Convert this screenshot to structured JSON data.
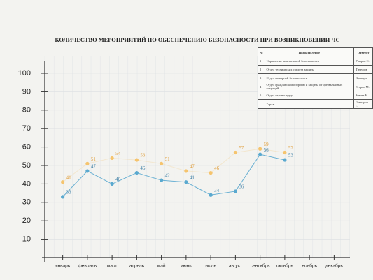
{
  "chart_data": {
    "type": "line",
    "title": "КОЛИЧЕСТВО МЕРОПРИЯТИЙ ПО ОБЕСПЕЧЕНИЮ БЕЗОПАСНОСТИ ПРИ ВОЗНИКНОВЕНИИ ЧС",
    "categories": [
      "январь",
      "февраль",
      "март",
      "апрель",
      "май",
      "июнь",
      "июль",
      "август",
      "сентябрь",
      "октябрь",
      "ноябрь",
      "декабрь"
    ],
    "series": [
      {
        "color": "#f5c46e",
        "values": [
          41,
          51,
          54,
          53,
          51,
          47,
          46,
          57,
          59,
          57,
          null,
          null
        ]
      },
      {
        "color": "#5aa9cf",
        "values": [
          33,
          47,
          40,
          46,
          42,
          41,
          34,
          36,
          56,
          53,
          null,
          null
        ]
      }
    ],
    "ylim": [
      0,
      100
    ],
    "yticks": [
      10,
      20,
      30,
      40,
      50,
      60,
      70,
      80,
      90,
      100
    ],
    "grid": true
  },
  "table": {
    "header": [
      "№",
      "Подразделение",
      "Ответст"
    ],
    "rows": [
      [
        "1",
        "Управление комплексной безопасности",
        "Умаров С."
      ],
      [
        "2",
        "Отдел технических средств защиты",
        "Тимуров"
      ],
      [
        "3",
        "Отдел пожарной безопасности",
        "Кривцов"
      ],
      [
        "4",
        "Отдел гражданской обороны и защиты от чрезвычайных ситуаций",
        "Егоров М."
      ],
      [
        "5",
        "Отдел охраны труда",
        "Зимин Н."
      ],
      [
        "",
        "Гараж",
        "Гончаров Г."
      ]
    ]
  }
}
